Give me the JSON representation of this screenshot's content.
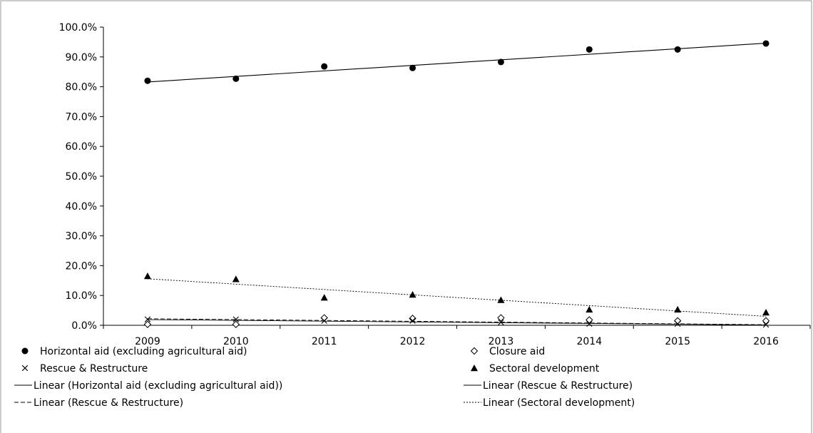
{
  "chart_data": {
    "type": "scatter",
    "title": "",
    "xlabel": "",
    "ylabel": "",
    "x": [
      "2009",
      "2010",
      "2011",
      "2012",
      "2013",
      "2014",
      "2015",
      "2016"
    ],
    "y_ticks": [
      "0.0%",
      "10.0%",
      "20.0%",
      "30.0%",
      "40.0%",
      "50.0%",
      "60.0%",
      "70.0%",
      "80.0%",
      "90.0%",
      "100.0%"
    ],
    "ylim": [
      0,
      100
    ],
    "grid": false,
    "series": [
      {
        "name": "Horizontal aid (excluding agricultural aid)",
        "marker": "filled-circle",
        "color": "#000000",
        "values": [
          82.0,
          82.7,
          86.8,
          86.3,
          88.3,
          92.5,
          92.5,
          94.5
        ]
      },
      {
        "name": "Closure aid",
        "marker": "open-diamond",
        "color": "#000000",
        "values": [
          0.3,
          0.3,
          2.5,
          2.3,
          2.5,
          1.8,
          1.5,
          1.5
        ]
      },
      {
        "name": "Rescue & Restructure",
        "marker": "x",
        "color": "#000000",
        "values": [
          2.0,
          2.0,
          1.5,
          1.5,
          1.0,
          0.5,
          0.5,
          0.2
        ]
      },
      {
        "name": "Sectoral development",
        "marker": "filled-triangle",
        "color": "#000000",
        "values": [
          16.5,
          15.5,
          9.3,
          10.3,
          8.5,
          5.3,
          5.3,
          4.3
        ]
      }
    ],
    "trendlines": [
      {
        "name": "Linear (Horizontal aid (excluding agricultural aid))",
        "style": "solid",
        "start": 81.6,
        "end": 94.6
      },
      {
        "name": "Linear (Rescue & Restructure)",
        "style": "solid",
        "start": 1.9,
        "end": 0.1
      },
      {
        "name": "Linear (Rescue & Restructure)",
        "style": "dashed",
        "start": 2.2,
        "end": 0.2
      },
      {
        "name": "Linear (Sectoral development)",
        "style": "dotted",
        "start": 15.6,
        "end": 3.0
      }
    ],
    "legend_position": "bottom"
  }
}
